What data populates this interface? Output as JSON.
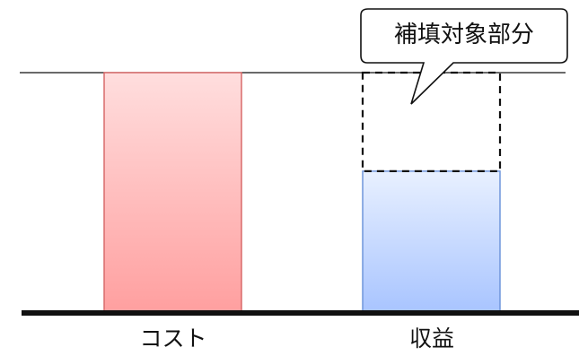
{
  "diagram": {
    "cost_label": "コスト",
    "revenue_label": "収益",
    "callout_text": "補填対象部分",
    "cost_ratio": 1.0,
    "revenue_ratio": 0.59,
    "cost_fill_top": "#ffdede",
    "cost_fill_bottom": "#ff9f9f",
    "cost_border": "#d96b6b",
    "revenue_fill_top": "#e8f0ff",
    "revenue_fill_bottom": "#a8c4ff",
    "revenue_border": "#6f95db",
    "line_color": "#111111"
  }
}
